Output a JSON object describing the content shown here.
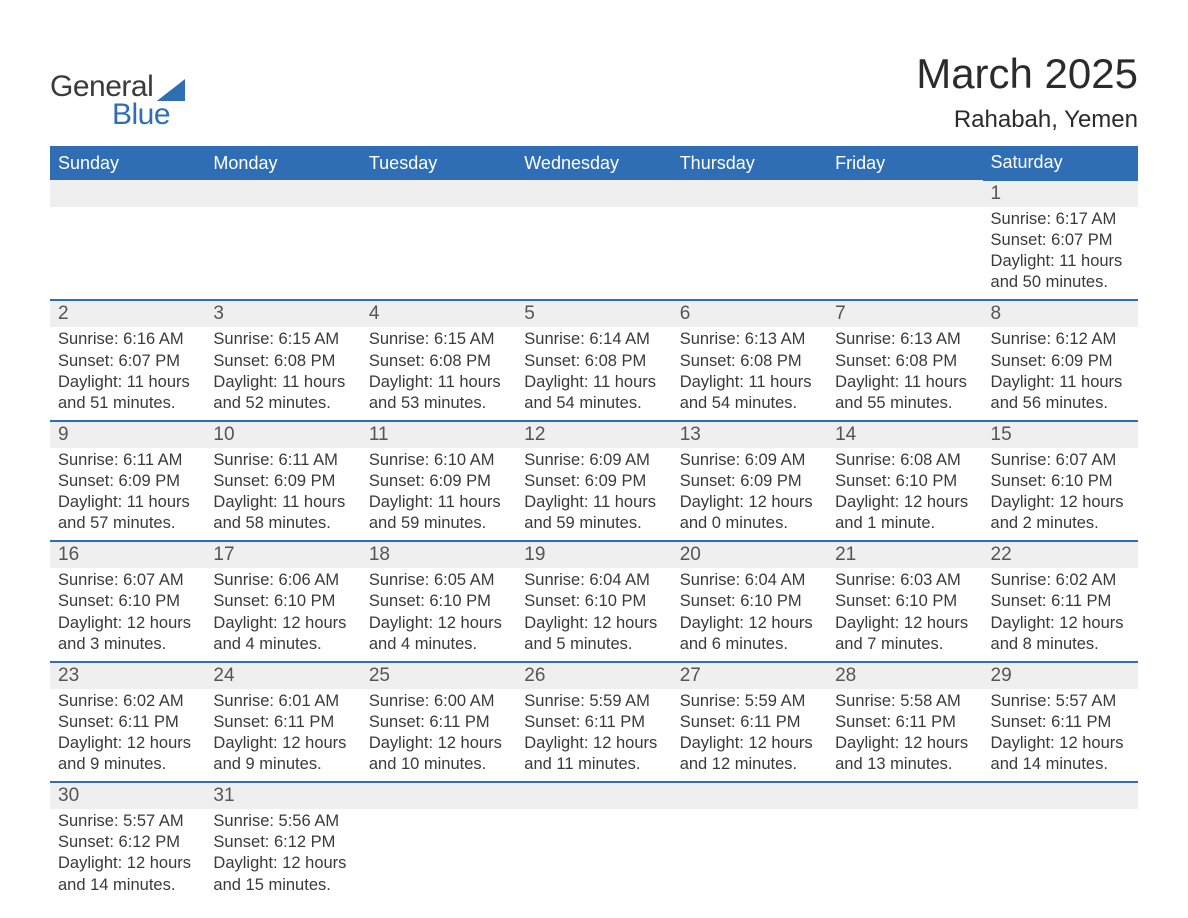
{
  "brand": {
    "name1": "General",
    "name2": "Blue",
    "accent": "#2f6eb5",
    "text_color": "#3a3a3a"
  },
  "title": "March 2025",
  "location": "Rahabah, Yemen",
  "colors": {
    "header_bg": "#2f6eb5",
    "header_text": "#ffffff",
    "daynum_bg": "#efefef",
    "daynum_text": "#555555",
    "body_bg": "#ffffff",
    "body_text": "#3a3a3a",
    "row_border": "#2f6eb5"
  },
  "fonts": {
    "title_size": 42,
    "location_size": 24,
    "header_size": 18,
    "daynum_size": 19,
    "detail_size": 16.5
  },
  "weekdays": [
    "Sunday",
    "Monday",
    "Tuesday",
    "Wednesday",
    "Thursday",
    "Friday",
    "Saturday"
  ],
  "weeks": [
    [
      null,
      null,
      null,
      null,
      null,
      null,
      {
        "n": "1",
        "sunrise": "6:17 AM",
        "sunset": "6:07 PM",
        "dl_h": "11",
        "dl_m": "50 minutes"
      }
    ],
    [
      {
        "n": "2",
        "sunrise": "6:16 AM",
        "sunset": "6:07 PM",
        "dl_h": "11",
        "dl_m": "51 minutes"
      },
      {
        "n": "3",
        "sunrise": "6:15 AM",
        "sunset": "6:08 PM",
        "dl_h": "11",
        "dl_m": "52 minutes"
      },
      {
        "n": "4",
        "sunrise": "6:15 AM",
        "sunset": "6:08 PM",
        "dl_h": "11",
        "dl_m": "53 minutes"
      },
      {
        "n": "5",
        "sunrise": "6:14 AM",
        "sunset": "6:08 PM",
        "dl_h": "11",
        "dl_m": "54 minutes"
      },
      {
        "n": "6",
        "sunrise": "6:13 AM",
        "sunset": "6:08 PM",
        "dl_h": "11",
        "dl_m": "54 minutes"
      },
      {
        "n": "7",
        "sunrise": "6:13 AM",
        "sunset": "6:08 PM",
        "dl_h": "11",
        "dl_m": "55 minutes"
      },
      {
        "n": "8",
        "sunrise": "6:12 AM",
        "sunset": "6:09 PM",
        "dl_h": "11",
        "dl_m": "56 minutes"
      }
    ],
    [
      {
        "n": "9",
        "sunrise": "6:11 AM",
        "sunset": "6:09 PM",
        "dl_h": "11",
        "dl_m": "57 minutes"
      },
      {
        "n": "10",
        "sunrise": "6:11 AM",
        "sunset": "6:09 PM",
        "dl_h": "11",
        "dl_m": "58 minutes"
      },
      {
        "n": "11",
        "sunrise": "6:10 AM",
        "sunset": "6:09 PM",
        "dl_h": "11",
        "dl_m": "59 minutes"
      },
      {
        "n": "12",
        "sunrise": "6:09 AM",
        "sunset": "6:09 PM",
        "dl_h": "11",
        "dl_m": "59 minutes"
      },
      {
        "n": "13",
        "sunrise": "6:09 AM",
        "sunset": "6:09 PM",
        "dl_h": "12",
        "dl_m": "0 minutes"
      },
      {
        "n": "14",
        "sunrise": "6:08 AM",
        "sunset": "6:10 PM",
        "dl_h": "12",
        "dl_m": "1 minute"
      },
      {
        "n": "15",
        "sunrise": "6:07 AM",
        "sunset": "6:10 PM",
        "dl_h": "12",
        "dl_m": "2 minutes"
      }
    ],
    [
      {
        "n": "16",
        "sunrise": "6:07 AM",
        "sunset": "6:10 PM",
        "dl_h": "12",
        "dl_m": "3 minutes"
      },
      {
        "n": "17",
        "sunrise": "6:06 AM",
        "sunset": "6:10 PM",
        "dl_h": "12",
        "dl_m": "4 minutes"
      },
      {
        "n": "18",
        "sunrise": "6:05 AM",
        "sunset": "6:10 PM",
        "dl_h": "12",
        "dl_m": "4 minutes"
      },
      {
        "n": "19",
        "sunrise": "6:04 AM",
        "sunset": "6:10 PM",
        "dl_h": "12",
        "dl_m": "5 minutes"
      },
      {
        "n": "20",
        "sunrise": "6:04 AM",
        "sunset": "6:10 PM",
        "dl_h": "12",
        "dl_m": "6 minutes"
      },
      {
        "n": "21",
        "sunrise": "6:03 AM",
        "sunset": "6:10 PM",
        "dl_h": "12",
        "dl_m": "7 minutes"
      },
      {
        "n": "22",
        "sunrise": "6:02 AM",
        "sunset": "6:11 PM",
        "dl_h": "12",
        "dl_m": "8 minutes"
      }
    ],
    [
      {
        "n": "23",
        "sunrise": "6:02 AM",
        "sunset": "6:11 PM",
        "dl_h": "12",
        "dl_m": "9 minutes"
      },
      {
        "n": "24",
        "sunrise": "6:01 AM",
        "sunset": "6:11 PM",
        "dl_h": "12",
        "dl_m": "9 minutes"
      },
      {
        "n": "25",
        "sunrise": "6:00 AM",
        "sunset": "6:11 PM",
        "dl_h": "12",
        "dl_m": "10 minutes"
      },
      {
        "n": "26",
        "sunrise": "5:59 AM",
        "sunset": "6:11 PM",
        "dl_h": "12",
        "dl_m": "11 minutes"
      },
      {
        "n": "27",
        "sunrise": "5:59 AM",
        "sunset": "6:11 PM",
        "dl_h": "12",
        "dl_m": "12 minutes"
      },
      {
        "n": "28",
        "sunrise": "5:58 AM",
        "sunset": "6:11 PM",
        "dl_h": "12",
        "dl_m": "13 minutes"
      },
      {
        "n": "29",
        "sunrise": "5:57 AM",
        "sunset": "6:11 PM",
        "dl_h": "12",
        "dl_m": "14 minutes"
      }
    ],
    [
      {
        "n": "30",
        "sunrise": "5:57 AM",
        "sunset": "6:12 PM",
        "dl_h": "12",
        "dl_m": "14 minutes"
      },
      {
        "n": "31",
        "sunrise": "5:56 AM",
        "sunset": "6:12 PM",
        "dl_h": "12",
        "dl_m": "15 minutes"
      },
      null,
      null,
      null,
      null,
      null
    ]
  ],
  "labels": {
    "sunrise": "Sunrise:",
    "sunset": "Sunset:",
    "daylight": "Daylight:",
    "hours": "hours",
    "and": "and"
  }
}
